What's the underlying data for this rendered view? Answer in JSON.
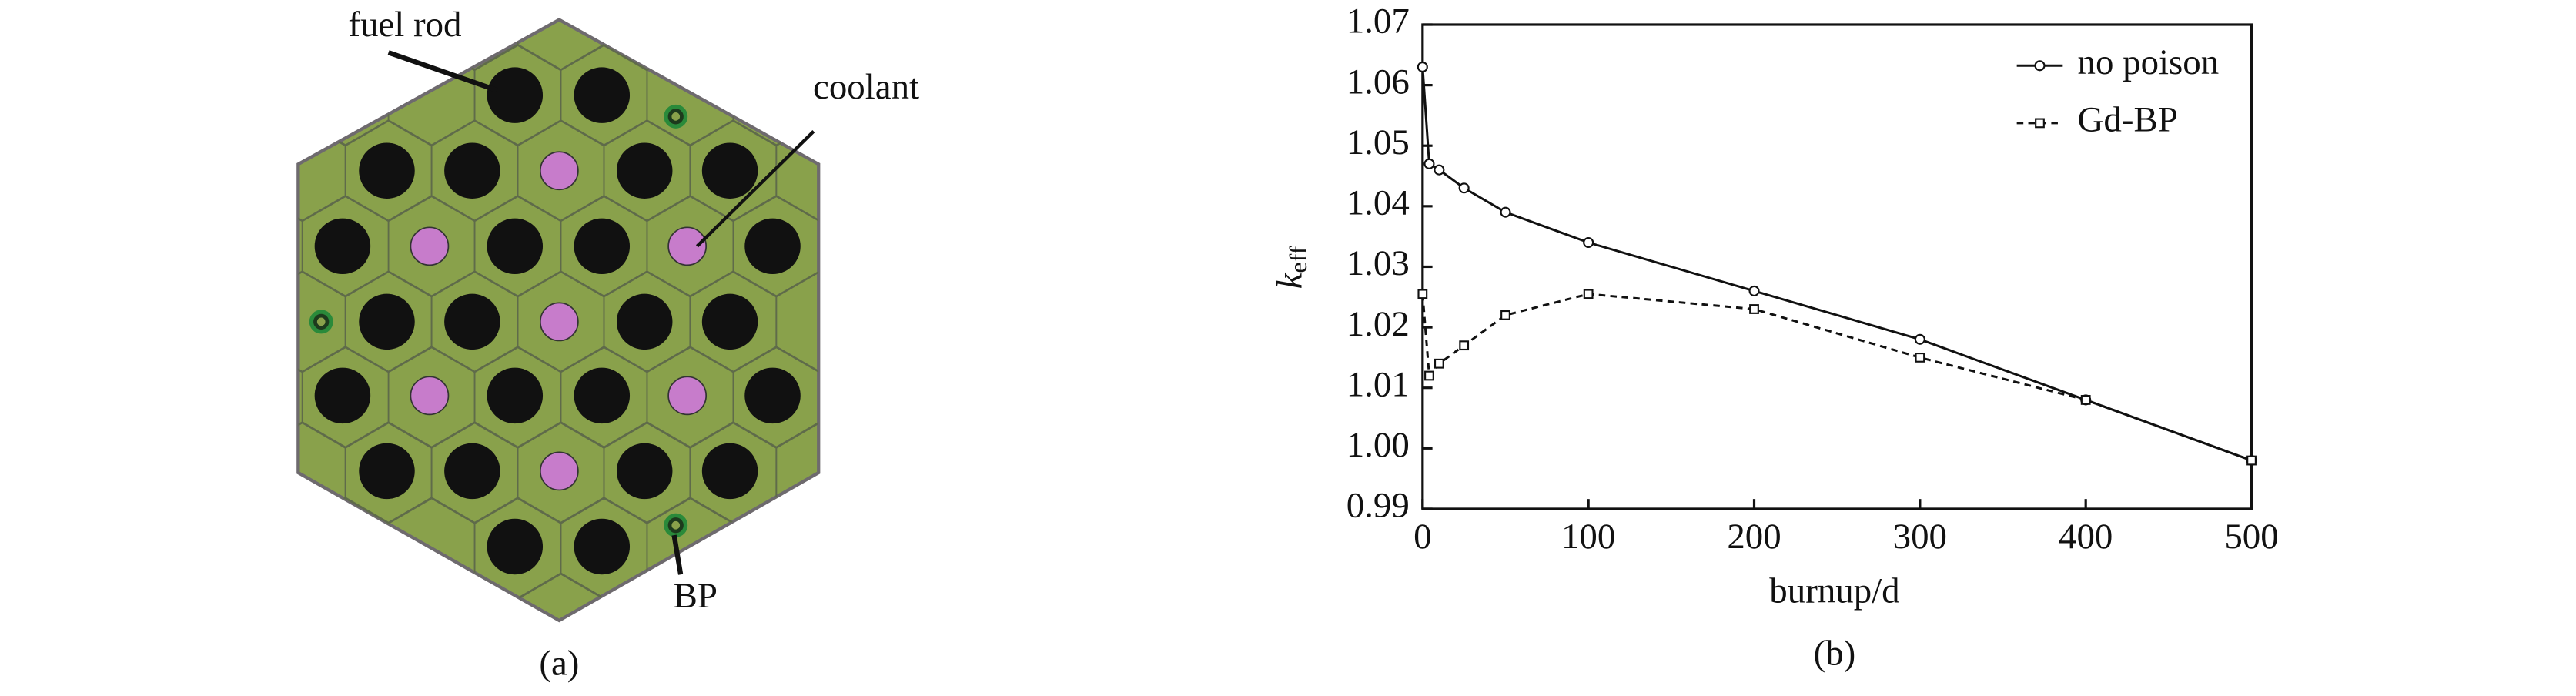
{
  "diagram": {
    "labels": [
      "fuel rod",
      "coolant",
      "BP"
    ],
    "caption": "(a)"
  },
  "chart_data": {
    "type": "line",
    "caption": "(b)",
    "xlabel": "burnup/d",
    "ylabel": {
      "main": "k",
      "sub": "eff"
    },
    "xlim": [
      0,
      500
    ],
    "xticks": [
      0,
      100,
      200,
      300,
      400,
      500
    ],
    "ylim": [
      0.99,
      1.07
    ],
    "yticks": [
      0.99,
      {
        "value": 1,
        "label": "1.00"
      },
      1.01,
      1.02,
      1.03,
      1.04,
      1.05,
      1.06,
      1.07
    ],
    "legend": "upper-right",
    "series": [
      {
        "name": "no poison",
        "color": "#111111",
        "dash": "solid",
        "marker": "circle",
        "x": [
          0,
          4,
          10,
          25,
          50,
          100,
          200,
          300,
          400,
          500
        ],
        "values": [
          1.063,
          1.047,
          1.046,
          1.043,
          1.039,
          1.034,
          1.026,
          1.018,
          1.008,
          0.998
        ]
      },
      {
        "name": "Gd-BP",
        "color": "#111111",
        "dash": "dashed",
        "marker": "square",
        "x": [
          0,
          4,
          10,
          25,
          50,
          100,
          200,
          300,
          400,
          500
        ],
        "values": [
          1.0255,
          1.012,
          1.014,
          1.017,
          1.022,
          1.0255,
          1.023,
          1.015,
          1.008,
          0.998
        ]
      }
    ]
  }
}
